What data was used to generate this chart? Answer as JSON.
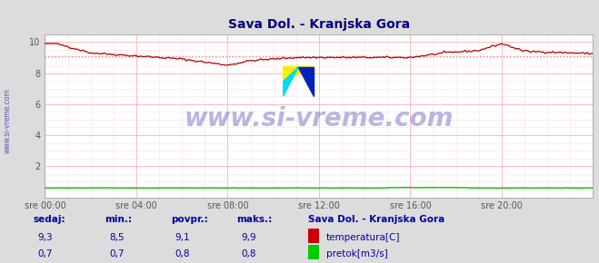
{
  "title": "Sava Dol. - Kranjska Gora",
  "bg_color": "#dcdcdc",
  "plot_bg_color": "#ffffff",
  "grid_color_major": "#ffb0b0",
  "grid_color_minor": "#ffe0e0",
  "title_color": "#000080",
  "label_color": "#0000aa",
  "tick_color": "#555555",
  "xlim_hours": [
    0,
    24
  ],
  "ylim": [
    0,
    10
  ],
  "yticks": [
    2,
    4,
    6,
    8,
    10
  ],
  "xtick_labels": [
    "sre 00:00",
    "sre 04:00",
    "sre 08:00",
    "sre 12:00",
    "sre 16:00",
    "sre 20:00"
  ],
  "xtick_positions": [
    0,
    4,
    8,
    12,
    16,
    20
  ],
  "temp_color": "#aa0000",
  "temp_avg_color": "#ff7777",
  "flow_color": "#00bb00",
  "temp_avg_value": 9.1,
  "watermark": "www.si-vreme.com",
  "watermark_color": "#3333aa",
  "footer_label1": "sedaj:",
  "footer_label2": "min.:",
  "footer_label3": "povpr.:",
  "footer_label4": "maks.:",
  "footer_station": "Sava Dol. - Kranjska Gora",
  "footer_temp_legend": "temperatura[C]",
  "footer_flow_legend": "pretok[m3/s]",
  "temp_sedaj": "9,3",
  "temp_min": "8,5",
  "temp_povpr": "9,1",
  "temp_maks": "9,9",
  "flow_sedaj": "0,7",
  "flow_min": "0,7",
  "flow_povpr": "0,8",
  "flow_maks": "0,8"
}
